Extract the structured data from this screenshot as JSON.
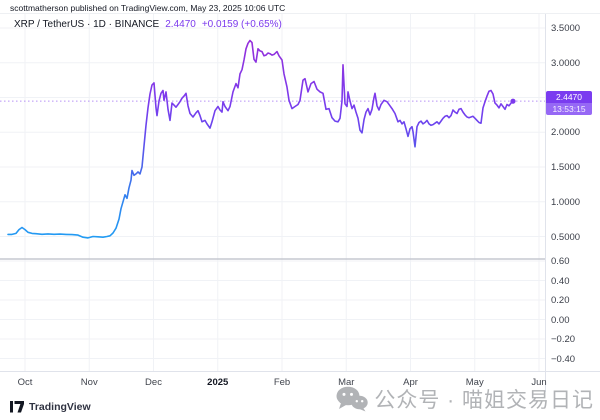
{
  "attribution": {
    "text": "scottmatherson published on TradingView.com, May 23, 2025 10:06 UTC"
  },
  "legend": {
    "title": "XRP / TetherUS · 1D · BINANCE",
    "last_price": "2.4470",
    "change": "+0.0159 (+0.65%)"
  },
  "price_label": {
    "price": "2.4470",
    "countdown": "13:53:15"
  },
  "watermark": {
    "text": "公众号 · 喵姐交易日记",
    "icon": "wechat-icon"
  },
  "footer": {
    "brand": "TradingView",
    "icon": "tradingview-logo-icon"
  },
  "colors": {
    "accent_purple": "#7c3aed",
    "badge_bg": "#7a3cf0",
    "badge_countdown_bg": "#9668f5",
    "line_blue": "#2196f3",
    "line_purple": "#9c2bd8",
    "grid": "#f0f2f6",
    "axis_border": "#e0e3eb",
    "pane_separator": "#c5c8d0",
    "text_dark": "#131722"
  },
  "chart_data": {
    "type": "line",
    "title": "XRP / TetherUS · 1D · BINANCE",
    "symbol": "XRP/USDT",
    "interval": "1D",
    "exchange": "BINANCE",
    "last_price": 2.447,
    "last_change": 0.0159,
    "last_change_pct": 0.65,
    "grid": true,
    "legend_position": "top-left",
    "x_axis": {
      "labels": [
        "Oct",
        "Nov",
        "Dec",
        "2025",
        "Feb",
        "Mar",
        "Apr",
        "May",
        "Jun"
      ],
      "bold_label": "2025"
    },
    "y_axis_price": {
      "side": "right",
      "ticks": [
        3.5,
        3.0,
        2.5,
        2.0,
        1.5,
        1.0,
        0.5
      ],
      "tick_labels": [
        "3.5000",
        "3.0000",
        "2.5000",
        "2.0000",
        "1.5000",
        "1.0000",
        "0.5000"
      ],
      "range": [
        0.3,
        3.6
      ]
    },
    "y_axis_lower_pane": {
      "side": "right",
      "ticks": [
        0.6,
        0.4,
        0.2,
        0.0,
        -0.2,
        -0.4
      ],
      "tick_labels": [
        "0.60",
        "0.40",
        "0.20",
        "0.00",
        "−0.20",
        "−0.40"
      ],
      "plot": "empty"
    },
    "series_name": "XRP close price (USDT)",
    "points_format": "[x_px_from_plot_left, price]",
    "points": [
      [
        8,
        0.53
      ],
      [
        12,
        0.53
      ],
      [
        16,
        0.545
      ],
      [
        19,
        0.6
      ],
      [
        22,
        0.63
      ],
      [
        25,
        0.6
      ],
      [
        28,
        0.56
      ],
      [
        32,
        0.545
      ],
      [
        36,
        0.54
      ],
      [
        42,
        0.532
      ],
      [
        48,
        0.538
      ],
      [
        54,
        0.532
      ],
      [
        60,
        0.535
      ],
      [
        66,
        0.53
      ],
      [
        72,
        0.528
      ],
      [
        78,
        0.52
      ],
      [
        83,
        0.49
      ],
      [
        88,
        0.48
      ],
      [
        93,
        0.5
      ],
      [
        98,
        0.495
      ],
      [
        103,
        0.49
      ],
      [
        107,
        0.5
      ],
      [
        110,
        0.51
      ],
      [
        113,
        0.55
      ],
      [
        116,
        0.62
      ],
      [
        119,
        0.75
      ],
      [
        121,
        0.9
      ],
      [
        123,
        1.0
      ],
      [
        125,
        1.1
      ],
      [
        127,
        1.05
      ],
      [
        129,
        1.2
      ],
      [
        131,
        1.31
      ],
      [
        132,
        1.45
      ],
      [
        134,
        1.38
      ],
      [
        136,
        1.4
      ],
      [
        138,
        1.43
      ],
      [
        140,
        1.4
      ],
      [
        142,
        1.5
      ],
      [
        144,
        1.8
      ],
      [
        146,
        2.1
      ],
      [
        148,
        2.35
      ],
      [
        150,
        2.55
      ],
      [
        152,
        2.68
      ],
      [
        154,
        2.71
      ],
      [
        156,
        2.35
      ],
      [
        157,
        2.24
      ],
      [
        159,
        2.45
      ],
      [
        161,
        2.56
      ],
      [
        163,
        2.6
      ],
      [
        164,
        2.46
      ],
      [
        166,
        2.58
      ],
      [
        168,
        2.33
      ],
      [
        170,
        2.17
      ],
      [
        172,
        2.42
      ],
      [
        174,
        2.39
      ],
      [
        176,
        2.36
      ],
      [
        178,
        2.4
      ],
      [
        180,
        2.44
      ],
      [
        182,
        2.49
      ],
      [
        184,
        2.52
      ],
      [
        186,
        2.56
      ],
      [
        188,
        2.38
      ],
      [
        190,
        2.27
      ],
      [
        193,
        2.22
      ],
      [
        196,
        2.28
      ],
      [
        198,
        2.31
      ],
      [
        200,
        2.24
      ],
      [
        202,
        2.15
      ],
      [
        205,
        2.17
      ],
      [
        207,
        2.12
      ],
      [
        210,
        2.06
      ],
      [
        212,
        2.15
      ],
      [
        215,
        2.31
      ],
      [
        218,
        2.37
      ],
      [
        220,
        2.32
      ],
      [
        222,
        2.29
      ],
      [
        223,
        2.44
      ],
      [
        225,
        2.37
      ],
      [
        228,
        2.31
      ],
      [
        230,
        2.37
      ],
      [
        233,
        2.58
      ],
      [
        236,
        2.7
      ],
      [
        238,
        2.64
      ],
      [
        240,
        2.84
      ],
      [
        242,
        2.9
      ],
      [
        244,
        3.04
      ],
      [
        246,
        3.2
      ],
      [
        248,
        3.28
      ],
      [
        250,
        3.32
      ],
      [
        252,
        3.29
      ],
      [
        254,
        3.05
      ],
      [
        256,
        3.01
      ],
      [
        258,
        3.2
      ],
      [
        260,
        3.17
      ],
      [
        262,
        3.16
      ],
      [
        264,
        3.1
      ],
      [
        266,
        3.11
      ],
      [
        268,
        3.14
      ],
      [
        270,
        3.13
      ],
      [
        272,
        3.11
      ],
      [
        274,
        3.12
      ],
      [
        277,
        3.16
      ],
      [
        279,
        3.1
      ],
      [
        282,
        3.04
      ],
      [
        284,
        2.84
      ],
      [
        287,
        2.65
      ],
      [
        289,
        2.46
      ],
      [
        292,
        2.34
      ],
      [
        295,
        2.37
      ],
      [
        298,
        2.4
      ],
      [
        300,
        2.46
      ],
      [
        303,
        2.75
      ],
      [
        305,
        2.77
      ],
      [
        308,
        2.58
      ],
      [
        311,
        2.7
      ],
      [
        314,
        2.73
      ],
      [
        317,
        2.62
      ],
      [
        320,
        2.58
      ],
      [
        323,
        2.56
      ],
      [
        326,
        2.33
      ],
      [
        329,
        2.34
      ],
      [
        332,
        2.21
      ],
      [
        335,
        2.16
      ],
      [
        338,
        2.15
      ],
      [
        340,
        2.2
      ],
      [
        342,
        2.45
      ],
      [
        343,
        2.97
      ],
      [
        345,
        2.41
      ],
      [
        347,
        2.37
      ],
      [
        348,
        2.58
      ],
      [
        350,
        2.45
      ],
      [
        352,
        2.34
      ],
      [
        354,
        2.39
      ],
      [
        356,
        2.29
      ],
      [
        358,
        2.2
      ],
      [
        360,
        2.03
      ],
      [
        362,
        1.99
      ],
      [
        364,
        2.18
      ],
      [
        366,
        2.29
      ],
      [
        368,
        2.34
      ],
      [
        370,
        2.25
      ],
      [
        372,
        2.33
      ],
      [
        374,
        2.5
      ],
      [
        375,
        2.56
      ],
      [
        377,
        2.38
      ],
      [
        379,
        2.32
      ],
      [
        381,
        2.4
      ],
      [
        384,
        2.46
      ],
      [
        387,
        2.44
      ],
      [
        390,
        2.38
      ],
      [
        392,
        2.34
      ],
      [
        395,
        2.27
      ],
      [
        398,
        2.15
      ],
      [
        400,
        2.17
      ],
      [
        402,
        2.12
      ],
      [
        404,
        2.15
      ],
      [
        406,
        2.05
      ],
      [
        408,
        1.94
      ],
      [
        410,
        2.05
      ],
      [
        412,
        2.08
      ],
      [
        413,
        2.01
      ],
      [
        415,
        1.79
      ],
      [
        417,
        2.08
      ],
      [
        419,
        2.14
      ],
      [
        421,
        2.16
      ],
      [
        423,
        2.12
      ],
      [
        425,
        2.14
      ],
      [
        427,
        2.17
      ],
      [
        429,
        2.12
      ],
      [
        431,
        2.1
      ],
      [
        433,
        2.11
      ],
      [
        435,
        2.13
      ],
      [
        437,
        2.15
      ],
      [
        439,
        2.12
      ],
      [
        441,
        2.16
      ],
      [
        443,
        2.2
      ],
      [
        445,
        2.23
      ],
      [
        447,
        2.24
      ],
      [
        449,
        2.21
      ],
      [
        451,
        2.24
      ],
      [
        453,
        2.32
      ],
      [
        455,
        2.29
      ],
      [
        457,
        2.27
      ],
      [
        459,
        2.33
      ],
      [
        461,
        2.34
      ],
      [
        463,
        2.29
      ],
      [
        465,
        2.25
      ],
      [
        467,
        2.22
      ],
      [
        469,
        2.21
      ],
      [
        471,
        2.22
      ],
      [
        473,
        2.23
      ],
      [
        475,
        2.2
      ],
      [
        477,
        2.17
      ],
      [
        479,
        2.14
      ],
      [
        481,
        2.13
      ],
      [
        483,
        2.35
      ],
      [
        485,
        2.44
      ],
      [
        487,
        2.52
      ],
      [
        489,
        2.59
      ],
      [
        491,
        2.6
      ],
      [
        493,
        2.55
      ],
      [
        495,
        2.42
      ],
      [
        497,
        2.39
      ],
      [
        499,
        2.35
      ],
      [
        501,
        2.41
      ],
      [
        503,
        2.37
      ],
      [
        505,
        2.33
      ],
      [
        507,
        2.4
      ],
      [
        509,
        2.38
      ],
      [
        511,
        2.42
      ],
      [
        513,
        2.447
      ]
    ]
  }
}
